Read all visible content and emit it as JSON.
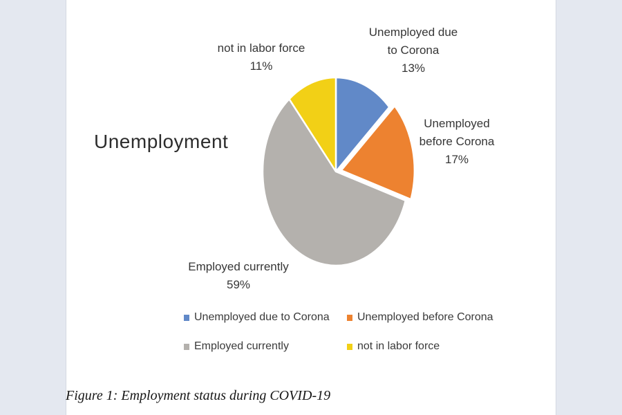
{
  "page": {
    "side_band_color": "#e4e8f0",
    "chart_background": "#ffffff"
  },
  "chart_data": {
    "type": "pie",
    "title": "Unemployment",
    "start_angle_deg": 0,
    "direction": "clockwise",
    "legend_position": "bottom",
    "slices": [
      {
        "label": "Unemployed due to Corona",
        "value": 13,
        "pct_label": "13%",
        "color": "#6189c8",
        "exploded": false
      },
      {
        "label": "Unemployed before Corona",
        "value": 17,
        "pct_label": "17%",
        "color": "#ed8230",
        "exploded": true
      },
      {
        "label": "Employed currently",
        "value": 59,
        "pct_label": "59%",
        "color": "#b4b1ad",
        "exploded": false
      },
      {
        "label": "not in labor force",
        "value": 11,
        "pct_label": "11%",
        "color": "#f2d016",
        "exploded": false
      }
    ]
  },
  "pie_labels": {
    "due": {
      "lines": [
        "Unemployed due",
        "to Corona"
      ],
      "pct": "13%"
    },
    "before": {
      "lines": [
        "Unemployed",
        "before Corona"
      ],
      "pct": "17%"
    },
    "employed": {
      "lines": [
        "Employed currently"
      ],
      "pct": "59%"
    },
    "nilf": {
      "lines": [
        "not in labor force"
      ],
      "pct": "11%"
    }
  },
  "caption": "Figure 1: Employment status during COVID-19"
}
